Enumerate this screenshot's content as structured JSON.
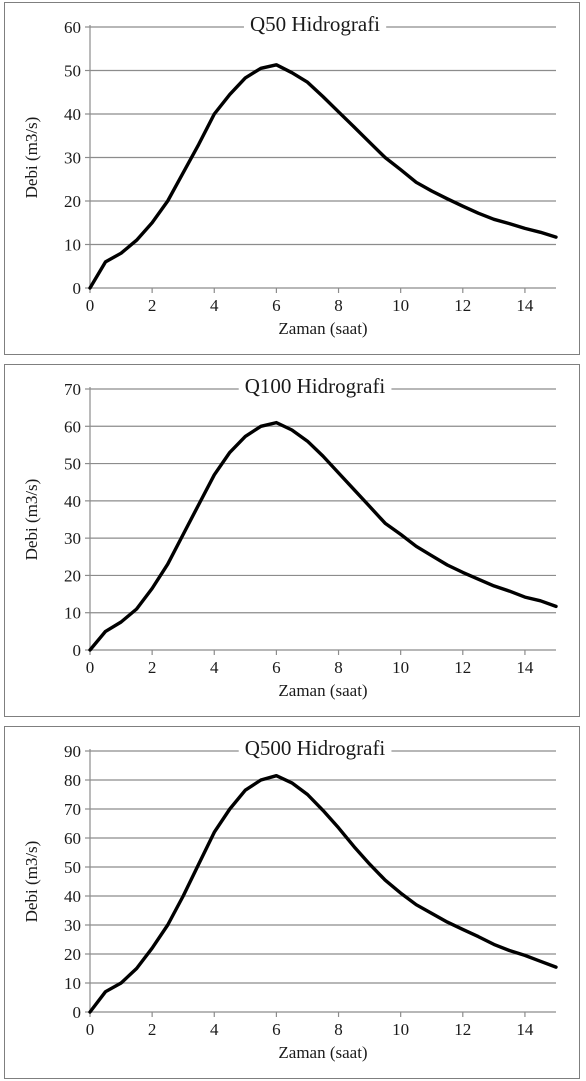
{
  "chart_data": [
    {
      "type": "line",
      "title": "Q50 Hidrografi",
      "xlabel": "Zaman (saat)",
      "ylabel": "Debi (m3/s)",
      "xlim": [
        0,
        15
      ],
      "ylim": [
        0,
        60
      ],
      "xticks": [
        0,
        2,
        4,
        6,
        8,
        10,
        12,
        14
      ],
      "yticks": [
        0,
        10,
        20,
        30,
        40,
        50,
        60
      ],
      "grid": true,
      "series": [
        {
          "x": [
            0,
            0.5,
            1,
            1.5,
            2,
            2.5,
            3,
            3.5,
            4,
            4.5,
            5,
            5.5,
            6,
            6.5,
            7,
            7.5,
            8,
            8.5,
            9,
            9.5,
            10,
            10.5,
            11,
            11.5,
            12,
            12.5,
            13,
            13.5,
            14,
            14.5,
            15
          ],
          "values": [
            0,
            6,
            8,
            11,
            15,
            20,
            26.5,
            33,
            40,
            44.5,
            48.3,
            50.5,
            51.3,
            49.5,
            47.3,
            44,
            40.5,
            37,
            33.5,
            30,
            27.2,
            24.3,
            22.3,
            20.5,
            18.8,
            17.2,
            15.8,
            14.8,
            13.7,
            12.8,
            11.7
          ]
        }
      ]
    },
    {
      "type": "line",
      "title": "Q100 Hidrografi",
      "xlabel": "Zaman (saat)",
      "ylabel": "Debi (m3/s)",
      "xlim": [
        0,
        15
      ],
      "ylim": [
        0,
        70
      ],
      "xticks": [
        0,
        2,
        4,
        6,
        8,
        10,
        12,
        14
      ],
      "yticks": [
        0,
        10,
        20,
        30,
        40,
        50,
        60,
        70
      ],
      "grid": true,
      "series": [
        {
          "x": [
            0,
            0.5,
            1,
            1.5,
            2,
            2.5,
            3,
            3.5,
            4,
            4.5,
            5,
            5.5,
            6,
            6.5,
            7,
            7.5,
            8,
            8.5,
            9,
            9.5,
            10,
            10.5,
            11,
            11.5,
            12,
            12.5,
            13,
            13.5,
            14,
            14.5,
            15
          ],
          "values": [
            0,
            5,
            7.5,
            11,
            16.5,
            23,
            31,
            39,
            47,
            53,
            57.3,
            60,
            61,
            59,
            56,
            52,
            47.5,
            43,
            38.5,
            34,
            31,
            27.8,
            25.3,
            22.8,
            20.8,
            19,
            17.2,
            15.8,
            14.2,
            13.2,
            11.7
          ]
        }
      ]
    },
    {
      "type": "line",
      "title": "Q500 Hidrografi",
      "xlabel": "Zaman (saat)",
      "ylabel": "Debi (m3/s)",
      "xlim": [
        0,
        15
      ],
      "ylim": [
        0,
        90
      ],
      "xticks": [
        0,
        2,
        4,
        6,
        8,
        10,
        12,
        14
      ],
      "yticks": [
        0,
        10,
        20,
        30,
        40,
        50,
        60,
        70,
        80,
        90
      ],
      "grid": true,
      "series": [
        {
          "x": [
            0,
            0.5,
            1,
            1.5,
            2,
            2.5,
            3,
            3.5,
            4,
            4.5,
            5,
            5.5,
            6,
            6.5,
            7,
            7.5,
            8,
            8.5,
            9,
            9.5,
            10,
            10.5,
            11,
            11.5,
            12,
            12.5,
            13,
            13.5,
            14,
            14.5,
            15
          ],
          "values": [
            0,
            7,
            10,
            15,
            22,
            30,
            40,
            51,
            62,
            70,
            76.5,
            80,
            81.5,
            79,
            75,
            69.5,
            63.5,
            57,
            51,
            45.5,
            41,
            37,
            34,
            31,
            28.5,
            26,
            23.3,
            21.2,
            19.5,
            17.5,
            15.5
          ]
        }
      ]
    }
  ]
}
